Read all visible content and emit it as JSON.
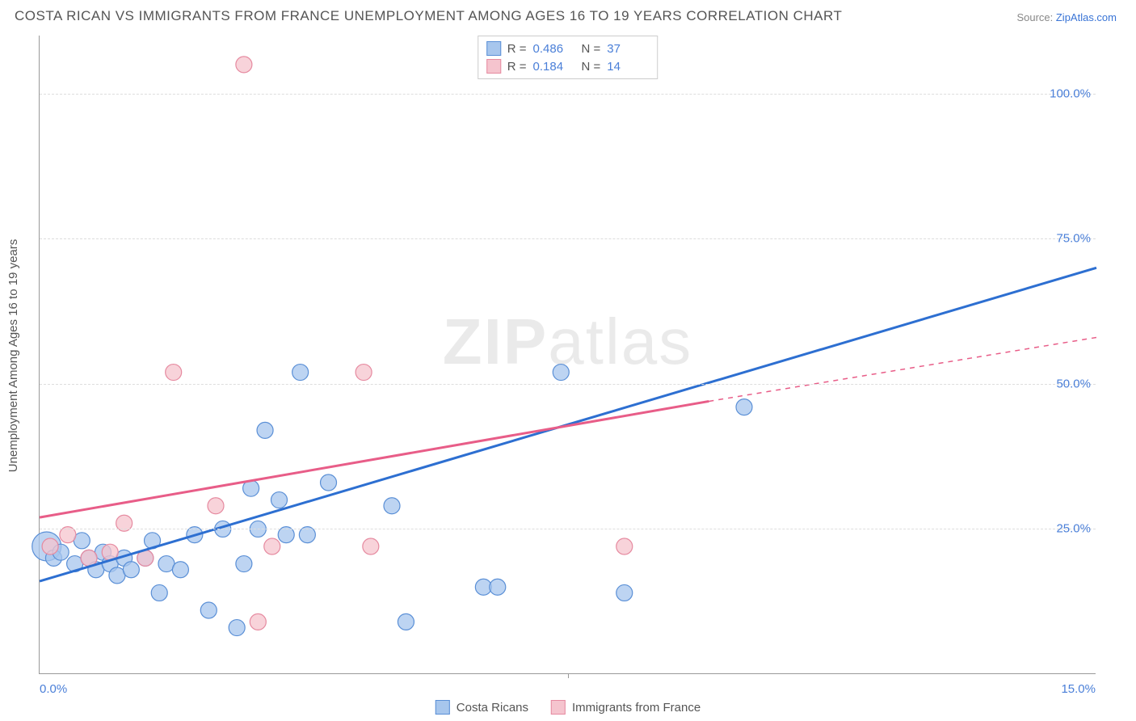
{
  "title": "COSTA RICAN VS IMMIGRANTS FROM FRANCE UNEMPLOYMENT AMONG AGES 16 TO 19 YEARS CORRELATION CHART",
  "source_prefix": "Source: ",
  "source_link": "ZipAtlas.com",
  "ylabel": "Unemployment Among Ages 16 to 19 years",
  "watermark_bold": "ZIP",
  "watermark_rest": "atlas",
  "chart": {
    "type": "scatter",
    "background_color": "#ffffff",
    "grid_color": "#dddddd",
    "axis_color": "#999999",
    "xlim": [
      0,
      15
    ],
    "ylim": [
      0,
      110
    ],
    "y_ticks": [
      25,
      50,
      75,
      100
    ],
    "y_tick_labels": [
      "25.0%",
      "50.0%",
      "75.0%",
      "100.0%"
    ],
    "x_tick_left": {
      "value": 0.0,
      "label": "0.0%"
    },
    "x_tick_right": {
      "value": 15.0,
      "label": "15.0%"
    },
    "x_vtick": 7.5,
    "series": [
      {
        "name": "Costa Ricans",
        "color_fill": "#a7c6ed",
        "color_stroke": "#5a8fd6",
        "marker_radius": 10,
        "marker_opacity": 0.75,
        "R": "0.486",
        "N": "37",
        "trend": {
          "x1": 0,
          "y1": 16,
          "x2": 15,
          "y2": 70,
          "color": "#2d6fd1",
          "width": 3
        },
        "points": [
          {
            "x": 0.1,
            "y": 22,
            "r": 18
          },
          {
            "x": 0.2,
            "y": 20
          },
          {
            "x": 0.3,
            "y": 21
          },
          {
            "x": 0.5,
            "y": 19
          },
          {
            "x": 0.6,
            "y": 23
          },
          {
            "x": 0.7,
            "y": 20
          },
          {
            "x": 0.8,
            "y": 18
          },
          {
            "x": 0.9,
            "y": 21
          },
          {
            "x": 1.0,
            "y": 19
          },
          {
            "x": 1.1,
            "y": 17
          },
          {
            "x": 1.2,
            "y": 20
          },
          {
            "x": 1.3,
            "y": 18
          },
          {
            "x": 1.5,
            "y": 20
          },
          {
            "x": 1.6,
            "y": 23
          },
          {
            "x": 1.7,
            "y": 14
          },
          {
            "x": 1.8,
            "y": 19
          },
          {
            "x": 2.0,
            "y": 18
          },
          {
            "x": 2.2,
            "y": 24
          },
          {
            "x": 2.4,
            "y": 11
          },
          {
            "x": 2.6,
            "y": 25
          },
          {
            "x": 2.8,
            "y": 8
          },
          {
            "x": 2.9,
            "y": 19
          },
          {
            "x": 3.0,
            "y": 32
          },
          {
            "x": 3.1,
            "y": 25
          },
          {
            "x": 3.2,
            "y": 42
          },
          {
            "x": 3.4,
            "y": 30
          },
          {
            "x": 3.5,
            "y": 24
          },
          {
            "x": 3.7,
            "y": 52
          },
          {
            "x": 3.8,
            "y": 24
          },
          {
            "x": 4.1,
            "y": 33
          },
          {
            "x": 5.0,
            "y": 29
          },
          {
            "x": 5.2,
            "y": 9
          },
          {
            "x": 6.3,
            "y": 15
          },
          {
            "x": 6.5,
            "y": 15
          },
          {
            "x": 7.4,
            "y": 52
          },
          {
            "x": 8.3,
            "y": 14
          },
          {
            "x": 10.0,
            "y": 46
          }
        ]
      },
      {
        "name": "Immigrants from France",
        "color_fill": "#f5c4ce",
        "color_stroke": "#e68aa0",
        "marker_radius": 10,
        "marker_opacity": 0.75,
        "R": "0.184",
        "N": "14",
        "trend": {
          "x1": 0,
          "y1": 27,
          "x2": 9.5,
          "y2": 47,
          "color": "#e85d88",
          "width": 3,
          "dash_extend": {
            "x2": 15,
            "y2": 58
          }
        },
        "points": [
          {
            "x": 0.15,
            "y": 22
          },
          {
            "x": 0.4,
            "y": 24
          },
          {
            "x": 0.7,
            "y": 20
          },
          {
            "x": 1.0,
            "y": 21
          },
          {
            "x": 1.2,
            "y": 26
          },
          {
            "x": 1.5,
            "y": 20
          },
          {
            "x": 1.9,
            "y": 52
          },
          {
            "x": 2.5,
            "y": 29
          },
          {
            "x": 2.9,
            "y": 105
          },
          {
            "x": 3.1,
            "y": 9
          },
          {
            "x": 3.3,
            "y": 22
          },
          {
            "x": 4.6,
            "y": 52
          },
          {
            "x": 4.7,
            "y": 22
          },
          {
            "x": 8.3,
            "y": 22
          }
        ]
      }
    ]
  },
  "legend_top": {
    "R_label": "R =",
    "N_label": "N ="
  },
  "legend_bottom": [
    {
      "label": "Costa Ricans",
      "fill": "#a7c6ed",
      "stroke": "#5a8fd6"
    },
    {
      "label": "Immigrants from France",
      "fill": "#f5c4ce",
      "stroke": "#e68aa0"
    }
  ]
}
